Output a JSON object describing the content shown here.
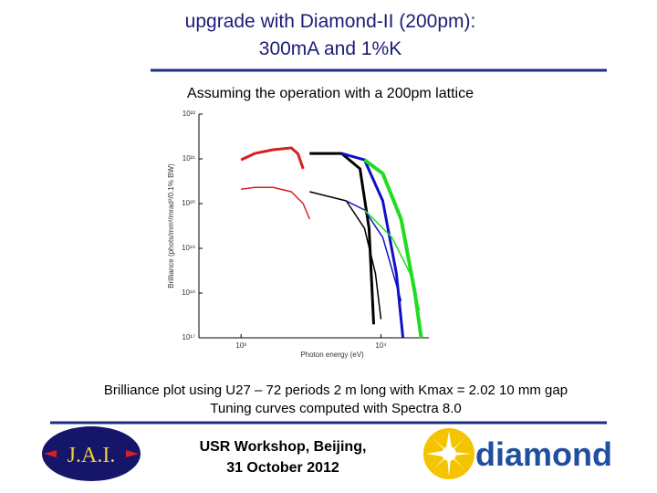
{
  "slide": {
    "title": [
      "upgrade with Diamond-II (200pm):",
      "300mA and 1%K"
    ],
    "subtitle": "Assuming the operation with a 200pm lattice",
    "caption": [
      "Brilliance plot using U27 – 72 periods 2 m long with Kmax = 2.02 10 mm gap",
      "Tuning curves computed with Spectra 8.0"
    ],
    "footer": [
      "USR Workshop, Beijing,",
      "31 October 2012"
    ],
    "logos": {
      "left": "J.A.I.",
      "right": "diamond"
    }
  },
  "chart_data": {
    "type": "line",
    "x_label": "Photon energy (eV)",
    "y_label": "Brilliance (phots/mm²/mrad²/0.1% BW)",
    "log_x": true,
    "log_y": true,
    "xlim": [
      500,
      22000
    ],
    "ylim": [
      1e+17,
      1e+22
    ],
    "xticks": [
      {
        "value": 1000,
        "label": "10³"
      },
      {
        "value": 10000,
        "label": "10⁴"
      }
    ],
    "yticks": [
      {
        "value": 1e+17,
        "label": "10¹⁷"
      },
      {
        "value": 1e+18,
        "label": "10¹⁸"
      },
      {
        "value": 1e+19,
        "label": "10¹⁹"
      },
      {
        "value": 1e+20,
        "label": "10²⁰"
      },
      {
        "value": 1e+21,
        "label": "10²¹"
      },
      {
        "value": 1e+22,
        "label": "10²²"
      }
    ],
    "series": [
      {
        "color": "#d62020",
        "line_width": 3,
        "x": [
          1000,
          1253,
          1694,
          2286,
          2550,
          2780
        ],
        "values": [
          9.5e+20,
          1.32e+21,
          1.6e+21,
          1.76e+21,
          1.3e+21,
          6e+20
        ]
      },
      {
        "color": "#d62020",
        "line_width": 1.5,
        "x": [
          1000,
          1253,
          1694,
          2286,
          2780,
          3090
        ],
        "values": [
          2.1e+20,
          2.3e+20,
          2.3e+20,
          1.84e+20,
          1e+20,
          4.5e+19
        ]
      },
      {
        "color": "#000000",
        "line_width": 3,
        "x": [
          3090,
          5236,
          7080,
          8220,
          8870
        ],
        "values": [
          1.32e+21,
          1.32e+21,
          6e+20,
          2.8e+19,
          2e+17
        ]
      },
      {
        "color": "#1010c8",
        "line_width": 3,
        "x": [
          5236,
          7625,
          10300,
          12900,
          14360
        ],
        "values": [
          1.32e+21,
          9.5e+20,
          1.15e+20,
          2.7e+18,
          1e+17
        ]
      },
      {
        "color": "#20dd20",
        "line_width": 4,
        "x": [
          7625,
          10300,
          13930,
          17450,
          19400
        ],
        "values": [
          9.5e+20,
          4.7e+20,
          4.5e+19,
          1.05e+18,
          1e+17
        ]
      },
      {
        "color": "#000000",
        "line_width": 1.5,
        "x": [
          3090,
          5650,
          7625,
          9140,
          10000
        ],
        "values": [
          1.84e+20,
          1.15e+20,
          2.8e+19,
          2.7e+18,
          2.6e+17
        ]
      },
      {
        "color": "#1010c8",
        "line_width": 1.5,
        "x": [
          5650,
          7625,
          10300,
          13930
        ],
        "values": [
          1.15e+20,
          7.2e+19,
          1.76e+19,
          6.6e+17
        ]
      },
      {
        "color": "#20dd20",
        "line_width": 1.5,
        "x": [
          7625,
          11970,
          16190,
          18840
        ],
        "values": [
          7.2e+19,
          1.76e+19,
          2.7e+18,
          4.1e+17
        ]
      }
    ]
  }
}
